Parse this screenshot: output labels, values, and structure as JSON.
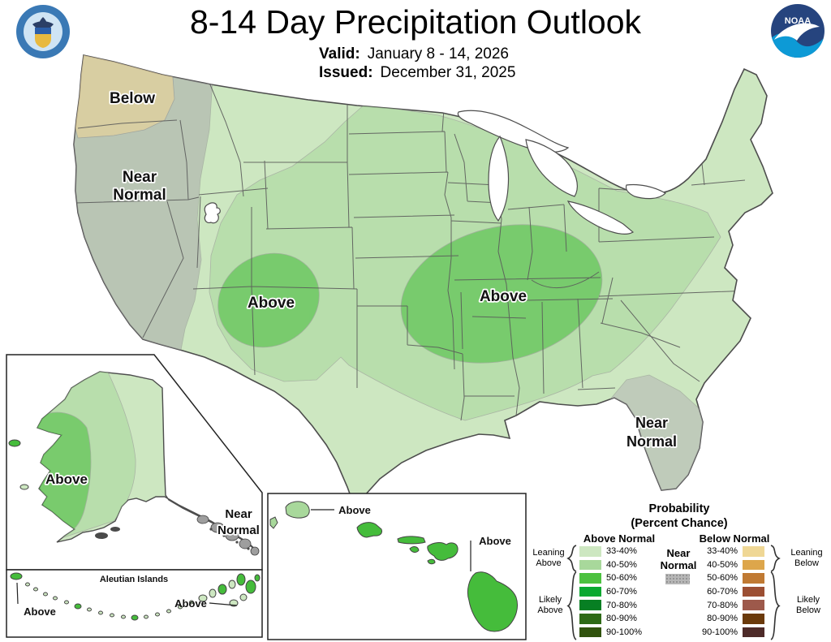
{
  "header": {
    "title": "8-14 Day Precipitation Outlook",
    "valid_label": "Valid:",
    "valid_value": "January 8 - 14, 2026",
    "issued_label": "Issued:",
    "issued_value": "December 31, 2025"
  },
  "logos": {
    "noaa_text": "NOAA"
  },
  "map": {
    "conus_labels": {
      "below_nw": "Below",
      "near_normal_west_1": "Near",
      "near_normal_west_2": "Normal",
      "above_four_corners": "Above",
      "above_central": "Above",
      "near_normal_florida_1": "Near",
      "near_normal_florida_2": "Normal"
    },
    "alaska_labels": {
      "above": "Above",
      "near_normal_1": "Near",
      "near_normal_2": "Normal"
    },
    "aleutian": {
      "title": "Aleutian Islands",
      "above_left": "Above",
      "above_right": "Above"
    },
    "hawaii_labels": {
      "above_kauai": "Above",
      "above_big_island": "Above"
    }
  },
  "legend": {
    "title_line1": "Probability",
    "title_line2": "(Percent Chance)",
    "above_header": "Above Normal",
    "below_header": "Below Normal",
    "near_normal_1": "Near",
    "near_normal_2": "Normal",
    "ranges": [
      "33-40%",
      "40-50%",
      "50-60%",
      "60-70%",
      "70-80%",
      "80-90%",
      "90-100%"
    ],
    "above_colors": [
      "#cde7c1",
      "#a8d89b",
      "#4cc13f",
      "#0aa930",
      "#077f23",
      "#2e6a16",
      "#31530e"
    ],
    "below_colors": [
      "#efd795",
      "#dda64b",
      "#c07a33",
      "#9c4f33",
      "#9d594b",
      "#6b3a0b",
      "#4e2b29"
    ],
    "near_normal_color": "#b7b7b7",
    "leaning_above_1": "Leaning",
    "leaning_above_2": "Above",
    "likely_above_1": "Likely",
    "likely_above_2": "Above",
    "leaning_below_1": "Leaning",
    "leaning_below_2": "Below",
    "likely_below_1": "Likely",
    "likely_below_2": "Below"
  },
  "colors": {
    "light_green_33_40": "#cde7c1",
    "medium_green_40_50": "#a8d89b",
    "dark_green_50_60": "#45bc3b",
    "near_normal_gray": "#aaaaaa",
    "florida_gray": "#b5b5b5",
    "below_tan_33_40": "#f2d694"
  }
}
